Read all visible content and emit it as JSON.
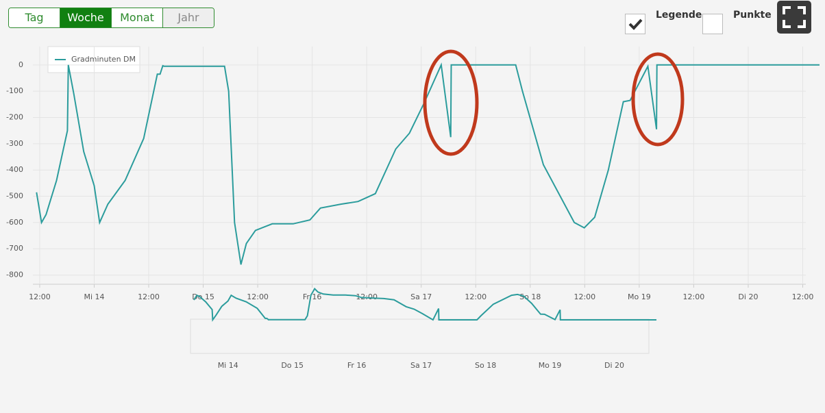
{
  "toolbar": {
    "buttons": [
      "Tag",
      "Woche",
      "Monat",
      "Jahr"
    ],
    "active_index": 1,
    "disabled_index": 3
  },
  "options": [
    {
      "label": "Legende",
      "checked": true
    },
    {
      "label": "Punkte",
      "checked": false
    }
  ],
  "chart_data": {
    "type": "line",
    "x": [
      -12.7,
      -11.6,
      -10.6,
      -8.3,
      -5.9,
      -5.7,
      -4.5,
      -2.3,
      0,
      1.2,
      3.0,
      6.8,
      10.9,
      13.9,
      14.5,
      15.1,
      15.4,
      28.7,
      29.6,
      30.9,
      32.3,
      33.5,
      35.5,
      39.2,
      43.8,
      47.5,
      49.8,
      54.3,
      58.1,
      61.9,
      66.4,
      69.4,
      72.5,
      76.4,
      78.5,
      78.6,
      92.8,
      94.3,
      98.9,
      105.7,
      107.9,
      110.2,
      113.2,
      116.5,
      118.0,
      121.9,
      123.8,
      123.9,
      159.7
    ],
    "series": [
      {
        "name": "Gradminuten DM",
        "color": "#2b9c9c",
        "values": [
          -485,
          -600,
          -570,
          -440,
          -250,
          0,
          -110,
          -330,
          -460,
          -600,
          -530,
          -440,
          -280,
          -35,
          -35,
          -3,
          -5,
          -5,
          -100,
          -600,
          -760,
          -680,
          -630,
          -605,
          -605,
          -590,
          -545,
          -530,
          -520,
          -490,
          -320,
          -260,
          -150,
          0,
          -275,
          0,
          0,
          -100,
          -380,
          -600,
          -620,
          -580,
          -400,
          -140,
          -135,
          -5,
          -245,
          0,
          0
        ]
      }
    ],
    "xlim": [
      -13.5,
      160
    ],
    "xticks": [
      {
        "value": -12,
        "label": "12:00"
      },
      {
        "value": 0,
        "label": "Mi 14"
      },
      {
        "value": 12,
        "label": "12:00"
      },
      {
        "value": 24,
        "label": "Do 15"
      },
      {
        "value": 36,
        "label": "12:00"
      },
      {
        "value": 48,
        "label": "Fr 16"
      },
      {
        "value": 60,
        "label": "12:00"
      },
      {
        "value": 72,
        "label": "Sa 17"
      },
      {
        "value": 84,
        "label": "12:00"
      },
      {
        "value": 96,
        "label": "So 18"
      },
      {
        "value": 108,
        "label": "12:00"
      },
      {
        "value": 120,
        "label": "Mo 19"
      },
      {
        "value": 132,
        "label": "12:00"
      },
      {
        "value": 144,
        "label": "Di 20"
      },
      {
        "value": 156,
        "label": "12:00"
      }
    ],
    "ylim": [
      -835,
      70
    ],
    "yticks": [
      0,
      -100,
      -200,
      -300,
      -400,
      -500,
      -600,
      -700,
      -800
    ],
    "grid": true
  }
}
